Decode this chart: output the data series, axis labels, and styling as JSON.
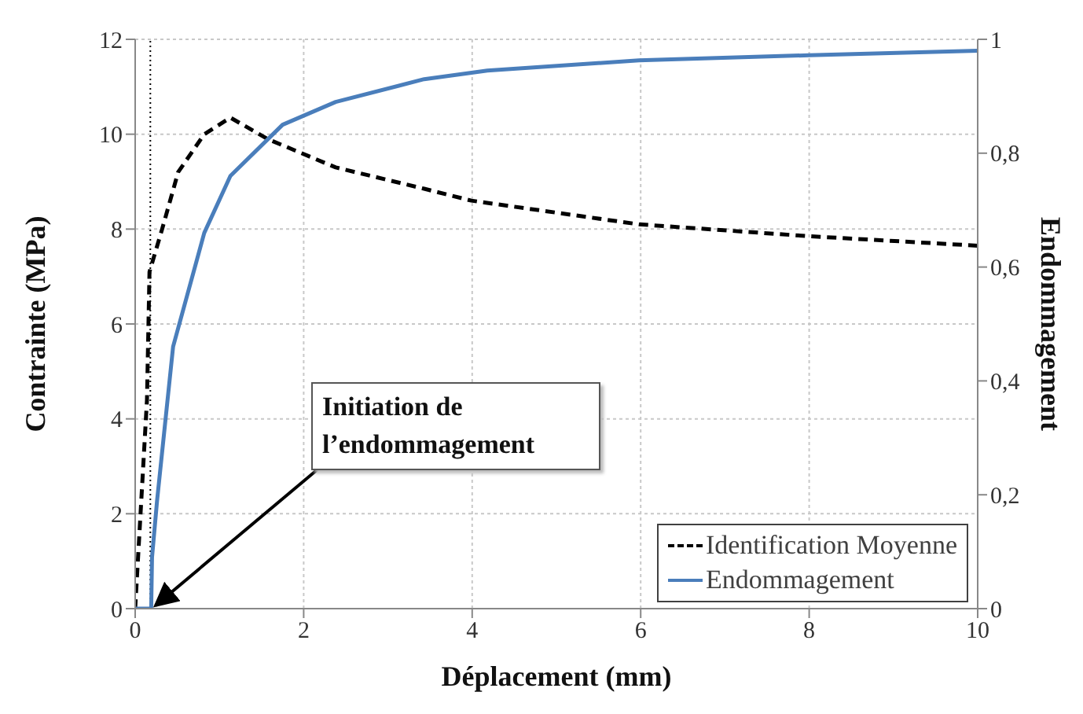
{
  "chart_data": {
    "type": "line",
    "xlabel": "Déplacement (mm)",
    "ylabel": "Contrainte (MPa)",
    "y2label": "Endommagement",
    "xlim": [
      0,
      10
    ],
    "xticks": [
      0,
      2,
      4,
      6,
      8,
      10
    ],
    "ylim": [
      0,
      12
    ],
    "yticks": [
      0,
      2,
      4,
      6,
      8,
      10,
      12
    ],
    "y2lim": [
      0,
      1
    ],
    "y2ticks": [
      0,
      {
        "value": 0.2,
        "label": "0,2"
      },
      {
        "value": 0.4,
        "label": "0,4"
      },
      {
        "value": 0.6,
        "label": "0,6"
      },
      {
        "value": 0.8,
        "label": "0,8"
      },
      1
    ],
    "grid": true,
    "legend": "bottom right",
    "marker": "none",
    "series": [
      {
        "name": "Identification Moyenne",
        "color": "#000000",
        "line_style": "dashed",
        "x": [
          0,
          0.07,
          0.14,
          0.17,
          0.32,
          0.51,
          0.82,
          1.13,
          1.57,
          2.38,
          3.43,
          3.99,
          5.98,
          8.0,
          10
        ],
        "values": [
          0,
          2.2,
          4.4,
          7.1,
          8.0,
          9.2,
          10.0,
          10.35,
          9.9,
          9.3,
          8.85,
          8.6,
          8.1,
          7.85,
          7.65
        ]
      },
      {
        "name": "Endommagement",
        "color": "#4a7ebb",
        "line_style": "solid",
        "axis": "y2",
        "x": [
          0,
          0.19,
          0.2,
          0.26,
          0.45,
          0.82,
          1.13,
          1.75,
          2.38,
          3.43,
          4.18,
          5.98,
          8.0,
          10
        ],
        "values": [
          0,
          0,
          0.09,
          0.19,
          0.46,
          0.66,
          0.76,
          0.85,
          0.89,
          0.93,
          0.945,
          0.963,
          0.972,
          0.98
        ]
      }
    ],
    "ref_lines": [
      {
        "axis": "x",
        "value": 0.18,
        "color": "#000000",
        "line_style": "dotted"
      }
    ],
    "annotations": [
      {
        "text": "Initiation de l’endommagement",
        "x": 0.2,
        "y": 0
      }
    ]
  }
}
